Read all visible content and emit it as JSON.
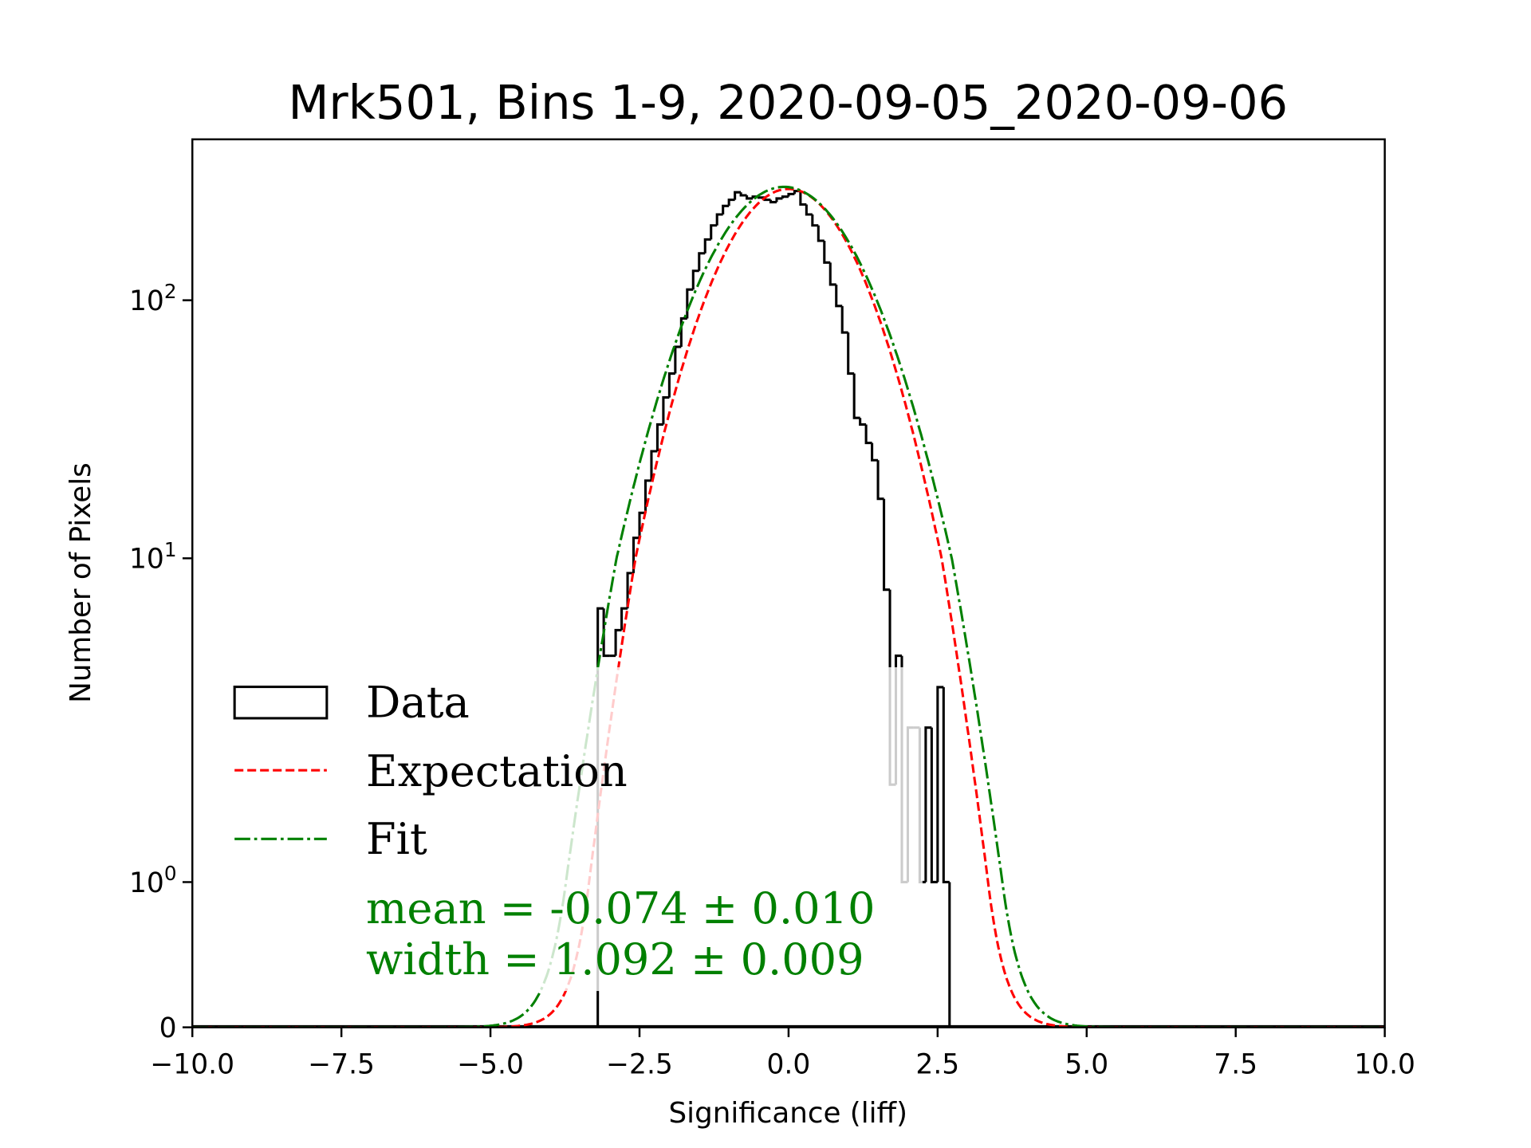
{
  "chart_data": {
    "type": "histogram",
    "title": "Mrk501, Bins 1-9, 2020-09-05_2020-09-06",
    "xlabel": "Significance (liff)",
    "ylabel": "Number of Pixels",
    "xlim": [
      -10,
      10
    ],
    "yscale": "symlog",
    "x_ticks": [
      {
        "value": -10,
        "label": "−10.0"
      },
      {
        "value": -7.5,
        "label": "−7.5"
      },
      {
        "value": -5,
        "label": "−5.0"
      },
      {
        "value": -2.5,
        "label": "−2.5"
      },
      {
        "value": 0,
        "label": "0.0"
      },
      {
        "value": 2.5,
        "label": "2.5"
      },
      {
        "value": 5,
        "label": "5.0"
      },
      {
        "value": 7.5,
        "label": "7.5"
      },
      {
        "value": 10,
        "label": "10.0"
      }
    ],
    "y_ticks": [
      {
        "value": 0,
        "base": "0",
        "exp": ""
      },
      {
        "value": 1,
        "base": "10",
        "exp": "0"
      },
      {
        "value": 10,
        "base": "10",
        "exp": "1"
      },
      {
        "value": 100,
        "base": "10",
        "exp": "2"
      }
    ],
    "histogram": {
      "name": "Data",
      "bin_start": -3.2,
      "bin_width": 0.1,
      "counts": [
        7,
        5,
        5,
        6,
        7,
        9,
        12,
        15,
        20,
        26,
        33,
        42,
        52,
        66,
        85,
        110,
        130,
        152,
        172,
        195,
        215,
        232,
        245,
        262,
        255,
        248,
        252,
        250,
        245,
        240,
        248,
        252,
        258,
        265,
        235,
        215,
        195,
        170,
        140,
        115,
        95,
        75,
        52,
        35,
        33,
        28,
        24,
        17,
        8,
        2,
        5,
        1,
        3,
        3,
        1,
        3,
        1,
        4,
        1,
        0
      ],
      "color": "#000000"
    },
    "curves": [
      {
        "name": "Expectation",
        "mean": 0.0,
        "width": 1.0,
        "amplitude": 270,
        "color": "#ff0000",
        "style": "dashed"
      },
      {
        "name": "Fit",
        "mean": -0.074,
        "width": 1.092,
        "amplitude": 275,
        "color": "#008000",
        "style": "dashdot"
      }
    ],
    "legend": {
      "placement": "lower-left",
      "entries": [
        "Data",
        "Expectation",
        "Fit"
      ]
    },
    "annotations": {
      "mean": "mean = -0.074 ± 0.010",
      "width": "width = 1.092 ± 0.009",
      "color": "#008000"
    },
    "grid": false
  }
}
